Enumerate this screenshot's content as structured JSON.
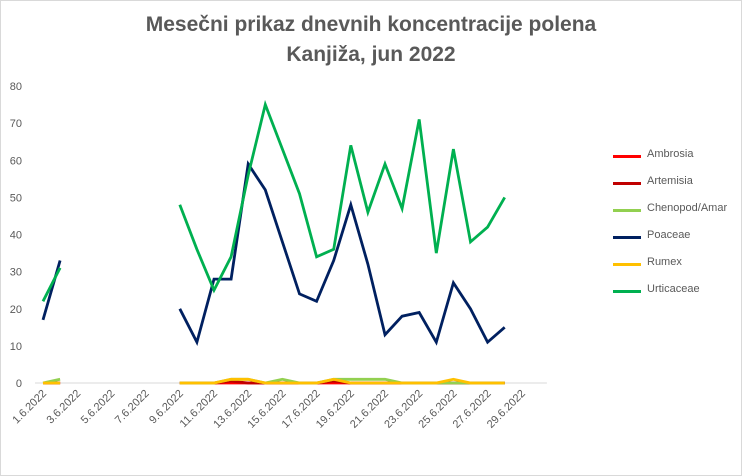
{
  "chart_data": {
    "type": "line",
    "title_line1": "Mesečni prikaz dnevnih koncentracije polena",
    "title_line2": "Kanjiža, jun 2022",
    "xlabel": "",
    "ylabel": "",
    "ylim": [
      0,
      80
    ],
    "y_ticks": [
      "0",
      "10",
      "20",
      "30",
      "40",
      "50",
      "60",
      "70",
      "80"
    ],
    "grid": false,
    "legend_position": "right",
    "x": [
      "1.6.2022",
      "2.6.2022",
      "3.6.2022",
      "4.6.2022",
      "5.6.2022",
      "6.6.2022",
      "7.6.2022",
      "8.6.2022",
      "9.6.2022",
      "10.6.2022",
      "11.6.2022",
      "12.6.2022",
      "13.6.2022",
      "14.6.2022",
      "15.6.2022",
      "16.6.2022",
      "17.6.2022",
      "18.6.2022",
      "19.6.2022",
      "20.6.2022",
      "21.6.2022",
      "22.6.2022",
      "23.6.2022",
      "24.6.2022",
      "25.6.2022",
      "26.6.2022",
      "27.6.2022",
      "28.6.2022",
      "29.6.2022",
      "30.6.2022"
    ],
    "x_tick_labels": [
      "1.6.2022",
      "3.6.2022",
      "5.6.2022",
      "7.6.2022",
      "9.6.2022",
      "11.6.2022",
      "13.6.2022",
      "15.6.2022",
      "17.6.2022",
      "19.6.2022",
      "21.6.2022",
      "23.6.2022",
      "25.6.2022",
      "27.6.2022",
      "29.6.2022"
    ],
    "series": [
      {
        "name": "Ambrosia",
        "color": "#ff0000",
        "values": [
          0,
          0,
          null,
          null,
          null,
          null,
          null,
          null,
          0,
          0,
          0,
          0,
          0,
          0,
          0,
          0,
          0,
          0,
          0,
          0,
          0,
          0,
          0,
          0,
          0,
          0,
          0,
          0,
          null,
          null
        ]
      },
      {
        "name": "Artemisia",
        "color": "#c00000",
        "values": [
          0,
          0,
          null,
          null,
          null,
          null,
          null,
          null,
          0,
          0,
          0,
          0.5,
          0,
          0,
          0,
          0,
          0,
          0.5,
          0,
          0,
          0,
          0,
          0,
          0,
          0,
          0,
          0,
          0,
          null,
          null
        ]
      },
      {
        "name": "Chenopod/Amar",
        "color": "#92d050",
        "values": [
          0,
          1,
          null,
          null,
          null,
          null,
          null,
          null,
          0,
          0,
          0,
          1,
          1,
          0,
          1,
          0,
          0,
          1,
          1,
          1,
          1,
          0,
          0,
          0,
          0,
          0,
          0,
          0,
          null,
          null
        ]
      },
      {
        "name": "Poaceae",
        "color": "#002060",
        "values": [
          17,
          33,
          null,
          null,
          null,
          null,
          null,
          null,
          20,
          11,
          28,
          28,
          59,
          52,
          38,
          24,
          22,
          33,
          48,
          32,
          13,
          18,
          19,
          11,
          27,
          20,
          11,
          15,
          null,
          null
        ]
      },
      {
        "name": "Rumex",
        "color": "#ffc000",
        "values": [
          0,
          0,
          null,
          null,
          null,
          null,
          null,
          null,
          0,
          0,
          0,
          1,
          1,
          0,
          0,
          0,
          0,
          1,
          0,
          0,
          0,
          0,
          0,
          0,
          1,
          0,
          0,
          0,
          null,
          null
        ]
      },
      {
        "name": "Urticaceae",
        "color": "#00b050",
        "values": [
          22,
          31,
          null,
          null,
          null,
          null,
          null,
          null,
          48,
          36,
          25,
          34,
          56,
          75,
          63,
          51,
          34,
          36,
          64,
          46,
          59,
          47,
          71,
          35,
          63,
          38,
          42,
          50,
          null,
          null
        ]
      }
    ]
  }
}
